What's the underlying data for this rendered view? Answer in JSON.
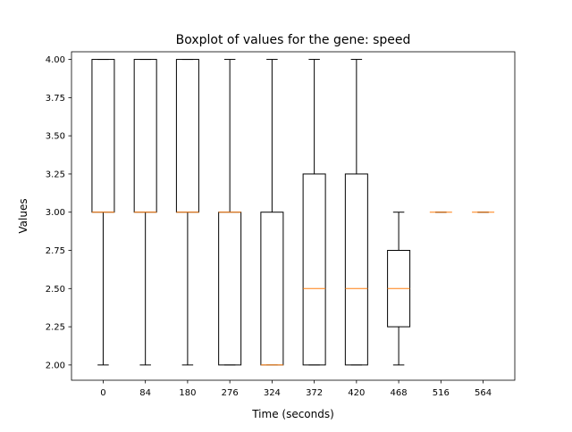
{
  "chart_data": {
    "type": "box",
    "title": "Boxplot of values for the gene: speed",
    "xlabel": "Time (seconds)",
    "ylabel": "Values",
    "ylim": [
      1.9,
      4.05
    ],
    "yticks": [
      2.0,
      2.25,
      2.5,
      2.75,
      3.0,
      3.25,
      3.5,
      3.75,
      4.0
    ],
    "ytick_labels": [
      "2.00",
      "2.25",
      "2.50",
      "2.75",
      "3.00",
      "3.25",
      "3.50",
      "3.75",
      "4.00"
    ],
    "categories": [
      "0",
      "84",
      "180",
      "276",
      "324",
      "372",
      "420",
      "468",
      "516",
      "564"
    ],
    "boxes": [
      {
        "whisker_low": 2.0,
        "q1": 3.0,
        "median": 3.0,
        "q3": 4.0,
        "whisker_high": 4.0
      },
      {
        "whisker_low": 2.0,
        "q1": 3.0,
        "median": 3.0,
        "q3": 4.0,
        "whisker_high": 4.0
      },
      {
        "whisker_low": 2.0,
        "q1": 3.0,
        "median": 3.0,
        "q3": 4.0,
        "whisker_high": 4.0
      },
      {
        "whisker_low": 2.0,
        "q1": 2.0,
        "median": 3.0,
        "q3": 3.0,
        "whisker_high": 4.0
      },
      {
        "whisker_low": 2.0,
        "q1": 2.0,
        "median": 2.0,
        "q3": 3.0,
        "whisker_high": 4.0
      },
      {
        "whisker_low": 2.0,
        "q1": 2.0,
        "median": 2.5,
        "q3": 3.25,
        "whisker_high": 4.0
      },
      {
        "whisker_low": 2.0,
        "q1": 2.0,
        "median": 2.5,
        "q3": 3.25,
        "whisker_high": 4.0
      },
      {
        "whisker_low": 2.0,
        "q1": 2.25,
        "median": 2.5,
        "q3": 2.75,
        "whisker_high": 3.0
      },
      {
        "whisker_low": 3.0,
        "q1": 3.0,
        "median": 3.0,
        "q3": 3.0,
        "whisker_high": 3.0
      },
      {
        "whisker_low": 3.0,
        "q1": 3.0,
        "median": 3.0,
        "q3": 3.0,
        "whisker_high": 3.0
      }
    ],
    "grid": false,
    "colors": {
      "box": "#000000",
      "median": "#ff7f0e",
      "axes": "#000000",
      "background": "#ffffff"
    }
  }
}
